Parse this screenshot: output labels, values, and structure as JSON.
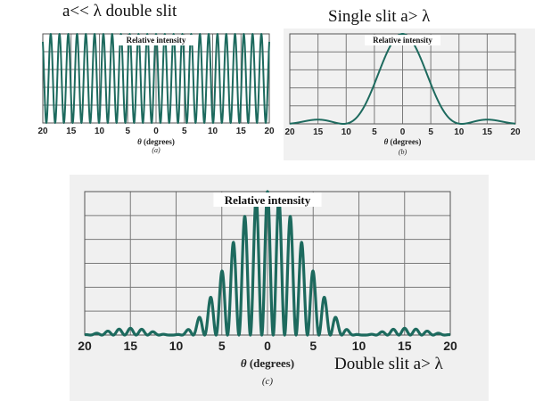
{
  "captions": {
    "a": "a<< λ  double slit",
    "b": "Single slit  a> λ",
    "c": "Double slit a> λ"
  },
  "colors": {
    "curve": "#1d6a5e",
    "grid": "#7a7a7a"
  },
  "chart_data": [
    {
      "id": "a",
      "type": "line",
      "title": "Relative intensity",
      "xlabel": "θ (degrees)",
      "panel_label": "(a)",
      "xlim": [
        -20,
        20
      ],
      "tick_labels": [
        "20",
        "15",
        "10",
        "5",
        "0",
        "5",
        "10",
        "15",
        "20"
      ],
      "grid": true,
      "series": [
        {
          "function": "cos2",
          "peak_spacing_deg": 1.55,
          "peak_value": 1.0
        }
      ]
    },
    {
      "id": "b",
      "type": "line",
      "title": "Relative intensity",
      "xlabel": "θ (degrees)",
      "panel_label": "(b)",
      "xlim": [
        -20,
        20
      ],
      "tick_labels": [
        "20",
        "15",
        "10",
        "5",
        "0",
        "5",
        "10",
        "15",
        "20"
      ],
      "grid": true,
      "series": [
        {
          "function": "sinc2",
          "first_minimum_deg": 10.5,
          "peak_value": 1.0
        }
      ]
    },
    {
      "id": "c",
      "type": "line",
      "title": "Relative intensity",
      "xlabel": "θ (degrees)",
      "panel_label": "(c)",
      "xlim": [
        -20,
        20
      ],
      "tick_labels": [
        "20",
        "15",
        "10",
        "5",
        "0",
        "5",
        "10",
        "15",
        "20"
      ],
      "grid": true,
      "series": [
        {
          "function": "cos2_times_sinc2",
          "fringe_spacing_deg": 1.25,
          "first_minimum_deg": 10.5,
          "peak_value": 1.0
        }
      ]
    }
  ]
}
